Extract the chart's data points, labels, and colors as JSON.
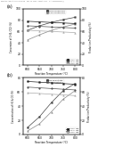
{
  "header": "Reaction Applications: Reforming    Rev. Ch. 2008   Report 2 of 4    S.A. 00000000000 (r)",
  "fig_bg": "#ffffff",
  "subplot_a": {
    "label": "(a)",
    "x": [
      600,
      650,
      700,
      750,
      800
    ],
    "lines_left": [
      {
        "label": "CH4 Conversion",
        "color": "#444444",
        "marker": "s",
        "values": [
          62,
          70,
          76,
          81,
          85
        ],
        "linestyle": "-"
      },
      {
        "label": "CO2 Conversion",
        "color": "#888888",
        "marker": "^",
        "values": [
          45,
          54,
          62,
          68,
          73
        ],
        "linestyle": "-"
      }
    ],
    "lines_right": [
      {
        "label": "1:0:1  N2",
        "color": "#222222",
        "marker": "s",
        "values": [
          78,
          77,
          76,
          75,
          74
        ],
        "linestyle": "-"
      },
      {
        "label": "1:1:1  N2",
        "color": "#555555",
        "marker": "o",
        "values": [
          70,
          69,
          68,
          67,
          66
        ],
        "linestyle": "-"
      },
      {
        "label": "1:2:1  N2",
        "color": "#aaaaaa",
        "marker": "^",
        "values": [
          62,
          61,
          60,
          59,
          58
        ],
        "linestyle": "-"
      }
    ],
    "ylabel_left": "Conversion of CH4, CO2 (%)",
    "ylabel_right": "Production/Productivity (%)",
    "xlabel": "Reaction Temperature (°C)",
    "ylim_left": [
      0,
      100
    ],
    "ylim_right": [
      0,
      100
    ],
    "yticks_left": [
      0,
      20,
      40,
      60,
      80,
      100
    ],
    "yticks_right": [
      0,
      20,
      40,
      60,
      80,
      100
    ]
  },
  "subplot_b": {
    "label": "(b)",
    "x": [
      600,
      650,
      700,
      750,
      800
    ],
    "lines_left": [
      {
        "label": "H2 Selectivity",
        "color": "#444444",
        "marker": "s",
        "values": [
          10,
          25,
          45,
          62,
          72
        ],
        "linestyle": "-"
      },
      {
        "label": "CO Selectivity",
        "color": "#888888",
        "marker": "^",
        "values": [
          5,
          15,
          32,
          50,
          62
        ],
        "linestyle": "-"
      }
    ],
    "lines_right": [
      {
        "label": "1:0:1  N2",
        "color": "#222222",
        "marker": "s",
        "values": [
          75,
          74,
          73,
          72,
          71
        ],
        "linestyle": "-"
      },
      {
        "label": "1:1:1  N2",
        "color": "#555555",
        "marker": "o",
        "values": [
          67,
          66,
          65,
          64,
          63
        ],
        "linestyle": "-"
      },
      {
        "label": "1:2:1  N2",
        "color": "#aaaaaa",
        "marker": "^",
        "values": [
          59,
          58,
          57,
          56,
          55
        ],
        "linestyle": "-"
      }
    ],
    "ylabel_left": "Concentration of H2 & CO (%)",
    "ylabel_right": "Production/Productivity (%)",
    "xlabel": "Reaction Temperature (°C)",
    "ylim_left": [
      0,
      80
    ],
    "ylim_right": [
      0,
      80
    ],
    "yticks_left": [
      0,
      20,
      40,
      60,
      80
    ],
    "yticks_right": [
      0,
      20,
      40,
      60,
      80
    ]
  }
}
